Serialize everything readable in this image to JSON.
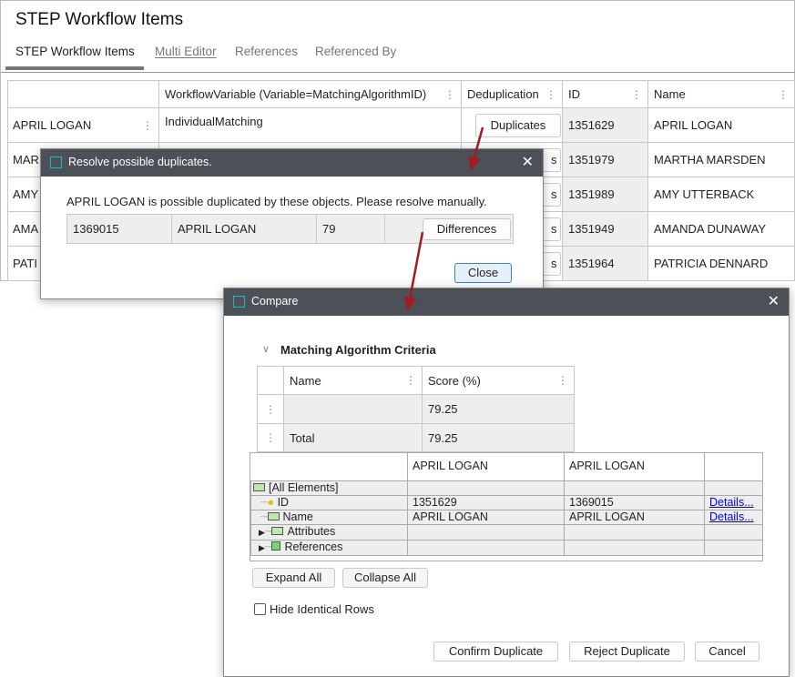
{
  "window": {
    "title": "STEP Workflow Items",
    "tabs": [
      {
        "label": "STEP Workflow Items"
      },
      {
        "label": "Multi Editor"
      },
      {
        "label": "References"
      },
      {
        "label": "Referenced By"
      }
    ]
  },
  "table": {
    "columns": [
      "",
      "WorkflowVariable (Variable=MatchingAlgorithmID)",
      "Deduplication",
      "ID",
      "Name"
    ],
    "rows": [
      {
        "label": "APRIL LOGAN",
        "variable": "IndividualMatching",
        "dedup": "Duplicates",
        "id": "1351629",
        "name": "APRIL LOGAN"
      },
      {
        "label": "MAR",
        "variable": "",
        "dedup": "s",
        "id": "1351979",
        "name": "MARTHA MARSDEN"
      },
      {
        "label": "AMY",
        "variable": "",
        "dedup": "s",
        "id": "1351989",
        "name": "AMY UTTERBACK"
      },
      {
        "label": "AMA",
        "variable": "",
        "dedup": "s",
        "id": "1351949",
        "name": "AMANDA DUNAWAY"
      },
      {
        "label": "PATI",
        "variable": "",
        "dedup": "s",
        "id": "1351964",
        "name": "PATRICIA DENNARD"
      }
    ]
  },
  "resolve_dialog": {
    "title": "Resolve possible duplicates.",
    "message": "APRIL LOGAN is possible duplicated by these objects. Please resolve manually.",
    "row": {
      "id": "1369015",
      "name": "APRIL LOGAN",
      "score": "79",
      "button": "Differences"
    },
    "close": "Close"
  },
  "compare_dialog": {
    "title": "Compare",
    "section": "Matching Algorithm Criteria",
    "criteria": {
      "columns": [
        "Name",
        "Score (%)"
      ],
      "rows": [
        {
          "name": "",
          "score": "79.25"
        },
        {
          "name": "Total",
          "score": "79.25"
        }
      ]
    },
    "grid": {
      "columns": [
        "",
        "APRIL LOGAN",
        "APRIL LOGAN",
        ""
      ],
      "rows": [
        {
          "label": "[All Elements]",
          "a": "",
          "b": "",
          "link": ""
        },
        {
          "label": "ID",
          "a": "1351629",
          "b": "1369015",
          "link": "Details..."
        },
        {
          "label": "Name",
          "a": "APRIL LOGAN",
          "b": "APRIL LOGAN",
          "link": "Details..."
        },
        {
          "label": "Attributes",
          "a": "",
          "b": "",
          "link": ""
        },
        {
          "label": "References",
          "a": "",
          "b": "",
          "link": ""
        }
      ]
    },
    "expand_all": "Expand All",
    "collapse_all": "Collapse All",
    "hide_identical": "Hide Identical Rows",
    "hide_identical_checked": false,
    "confirm": "Confirm Duplicate",
    "reject": "Reject Duplicate",
    "cancel": "Cancel"
  },
  "colors": {
    "titlebar": "#4b5157",
    "arrow": "#a01c22",
    "link": "#0000ee"
  }
}
